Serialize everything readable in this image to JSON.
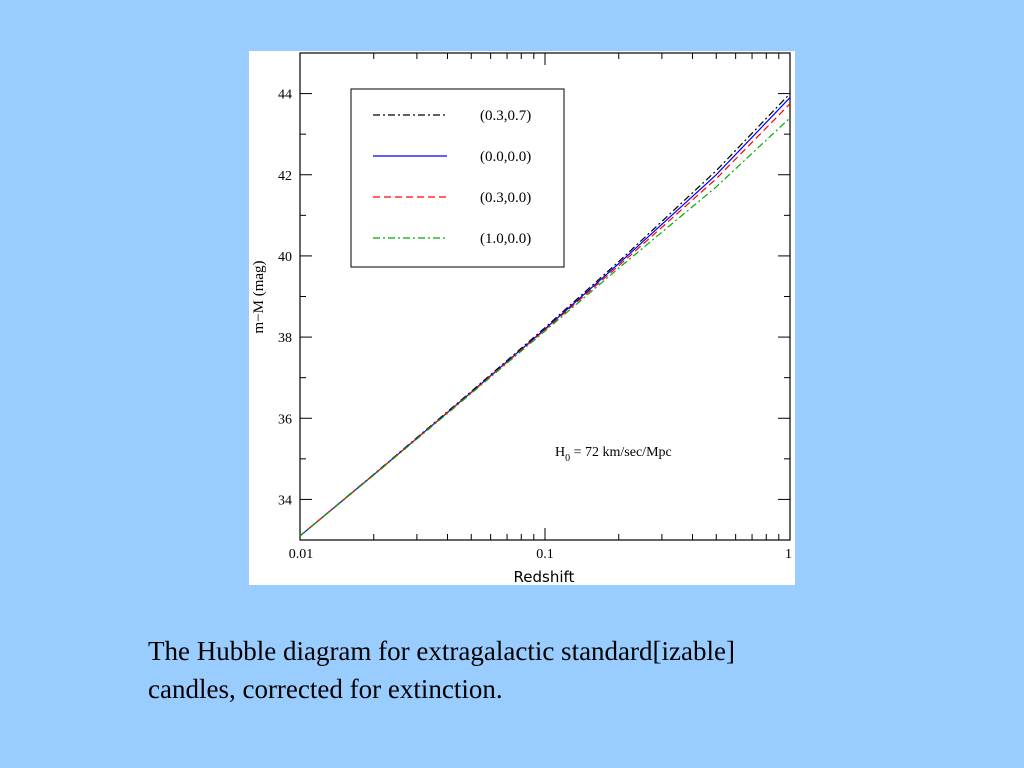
{
  "caption": {
    "line1": "The Hubble diagram for extragalactic standard[izable]",
    "line2": "candles, corrected for extinction."
  },
  "chart_data": {
    "type": "line",
    "xlabel": "Redshift",
    "ylabel": "m−M (mag)",
    "xscale": "log",
    "xlim": [
      0.01,
      1
    ],
    "ylim": [
      33,
      45
    ],
    "xticks": [
      "0.01",
      "0.1",
      "1"
    ],
    "yticks": [
      "34",
      "36",
      "38",
      "40",
      "42",
      "44"
    ],
    "grid": false,
    "legend_placement": "top-left",
    "annotation": {
      "main": "H",
      "sub": "0",
      "rest": " = 72 km/sec/Mpc"
    },
    "x": [
      0.01,
      0.02,
      0.05,
      0.1,
      0.2,
      0.5,
      1.0
    ],
    "series": [
      {
        "name": "(0.3,0.7)",
        "color": "#000000",
        "dash": "dashdot",
        "values": [
          33.1,
          34.62,
          36.66,
          38.23,
          39.86,
          42.1,
          44.0
        ]
      },
      {
        "name": "(0.0,0.0)",
        "color": "#0000ff",
        "dash": "solid",
        "values": [
          33.1,
          34.61,
          36.64,
          38.2,
          39.81,
          42.0,
          43.9
        ]
      },
      {
        "name": "(0.3,0.0)",
        "color": "#ff0000",
        "dash": "dashed",
        "values": [
          33.1,
          34.61,
          36.63,
          38.18,
          39.76,
          41.9,
          43.75
        ]
      },
      {
        "name": "(1.0,0.0)",
        "color": "#00aa00",
        "dash": "dashdot",
        "values": [
          33.1,
          34.6,
          36.61,
          38.15,
          39.7,
          41.7,
          43.4
        ]
      }
    ]
  }
}
